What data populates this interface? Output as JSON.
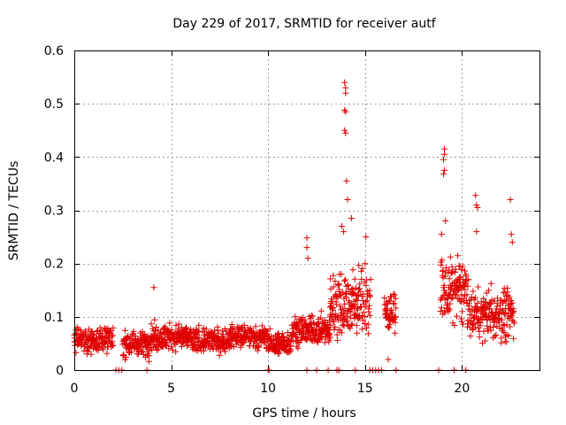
{
  "chart_data": {
    "type": "scatter",
    "title": "Day 229 of 2017, SRMTID for receiver autf",
    "xlabel": "GPS time / hours",
    "ylabel": "SRMTID / TECUs",
    "xlim": [
      0,
      24
    ],
    "ylim": [
      0,
      0.6
    ],
    "xticks": [
      0,
      5,
      10,
      15,
      20
    ],
    "yticks": [
      0,
      0.1,
      0.2,
      0.3,
      0.4,
      0.5,
      0.6
    ],
    "grid": true,
    "marker": "+",
    "color": "#e00000",
    "series": [
      {
        "name": "SRMTID",
        "segments": [
          {
            "x_start": 0.0,
            "x_end": 2.0,
            "base": 0.058,
            "spread": 0.022
          },
          {
            "x_start": 2.5,
            "x_end": 3.9,
            "base": 0.05,
            "spread": 0.022
          },
          {
            "x_start": 3.9,
            "x_end": 6.0,
            "base": 0.062,
            "spread": 0.022
          },
          {
            "x_start": 6.0,
            "x_end": 8.0,
            "base": 0.055,
            "spread": 0.022
          },
          {
            "x_start": 8.0,
            "x_end": 10.0,
            "base": 0.062,
            "spread": 0.02
          },
          {
            "x_start": 10.0,
            "x_end": 11.2,
            "base": 0.05,
            "spread": 0.02
          },
          {
            "x_start": 11.2,
            "x_end": 13.2,
            "base": 0.075,
            "spread": 0.025
          },
          {
            "x_start": 13.2,
            "x_end": 15.3,
            "base": 0.125,
            "spread": 0.06
          },
          {
            "x_start": 16.0,
            "x_end": 16.6,
            "base": 0.11,
            "spread": 0.035
          },
          {
            "x_start": 18.9,
            "x_end": 20.3,
            "base": 0.15,
            "spread": 0.06
          },
          {
            "x_start": 20.3,
            "x_end": 22.7,
            "base": 0.105,
            "spread": 0.045
          }
        ],
        "spikes": [
          {
            "x": 4.1,
            "y": 0.155
          },
          {
            "x": 12.0,
            "y": 0.248
          },
          {
            "x": 12.0,
            "y": 0.23
          },
          {
            "x": 12.05,
            "y": 0.21
          },
          {
            "x": 13.95,
            "y": 0.54
          },
          {
            "x": 14.0,
            "y": 0.53
          },
          {
            "x": 14.0,
            "y": 0.52
          },
          {
            "x": 13.95,
            "y": 0.488
          },
          {
            "x": 14.0,
            "y": 0.485
          },
          {
            "x": 13.95,
            "y": 0.45
          },
          {
            "x": 14.0,
            "y": 0.445
          },
          {
            "x": 14.05,
            "y": 0.355
          },
          {
            "x": 14.1,
            "y": 0.32
          },
          {
            "x": 13.8,
            "y": 0.27
          },
          {
            "x": 13.9,
            "y": 0.26
          },
          {
            "x": 14.3,
            "y": 0.285
          },
          {
            "x": 19.1,
            "y": 0.415
          },
          {
            "x": 19.1,
            "y": 0.405
          },
          {
            "x": 19.05,
            "y": 0.395
          },
          {
            "x": 19.1,
            "y": 0.375
          },
          {
            "x": 19.05,
            "y": 0.368
          },
          {
            "x": 19.15,
            "y": 0.28
          },
          {
            "x": 18.95,
            "y": 0.255
          },
          {
            "x": 20.7,
            "y": 0.328
          },
          {
            "x": 20.75,
            "y": 0.31
          },
          {
            "x": 20.8,
            "y": 0.305
          },
          {
            "x": 20.75,
            "y": 0.26
          },
          {
            "x": 22.5,
            "y": 0.32
          },
          {
            "x": 22.55,
            "y": 0.255
          },
          {
            "x": 22.6,
            "y": 0.24
          },
          {
            "x": 15.0,
            "y": 0.2
          },
          {
            "x": 15.05,
            "y": 0.25
          },
          {
            "x": 16.2,
            "y": 0.02
          }
        ],
        "zero_markers": [
          2.15,
          2.3,
          2.45,
          3.75,
          10.0,
          10.05,
          12.0,
          12.5,
          13.1,
          13.55,
          13.65,
          14.5,
          15.25,
          15.4,
          15.55,
          15.7,
          15.85,
          16.6,
          18.8,
          19.6,
          20.2
        ]
      }
    ]
  }
}
